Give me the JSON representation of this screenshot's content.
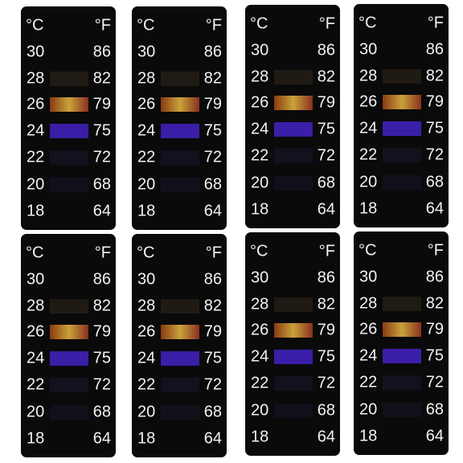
{
  "strips": [
    {
      "units": [
        "°C",
        "°F"
      ],
      "rows": [
        [
          30,
          86
        ],
        [
          28,
          82
        ],
        [
          26,
          79
        ],
        [
          24,
          75
        ],
        [
          22,
          72
        ],
        [
          20,
          68
        ],
        [
          18,
          64
        ]
      ]
    },
    {
      "units": [
        "°C",
        "°F"
      ],
      "rows": [
        [
          30,
          86
        ],
        [
          28,
          82
        ],
        [
          26,
          79
        ],
        [
          24,
          75
        ],
        [
          22,
          72
        ],
        [
          20,
          68
        ],
        [
          18,
          64
        ]
      ]
    },
    {
      "units": [
        "°C",
        "°F"
      ],
      "rows": [
        [
          30,
          86
        ],
        [
          28,
          82
        ],
        [
          26,
          79
        ],
        [
          24,
          75
        ],
        [
          22,
          72
        ],
        [
          20,
          68
        ],
        [
          18,
          64
        ]
      ]
    },
    {
      "units": [
        "°C",
        "°F"
      ],
      "rows": [
        [
          30,
          86
        ],
        [
          28,
          82
        ],
        [
          26,
          79
        ],
        [
          24,
          75
        ],
        [
          22,
          72
        ],
        [
          20,
          68
        ],
        [
          18,
          64
        ]
      ]
    },
    {
      "units": [
        "°C",
        "°F"
      ],
      "rows": [
        [
          30,
          86
        ],
        [
          28,
          82
        ],
        [
          26,
          79
        ],
        [
          24,
          75
        ],
        [
          22,
          72
        ],
        [
          20,
          68
        ],
        [
          18,
          64
        ]
      ]
    },
    {
      "units": [
        "°C",
        "°F"
      ],
      "rows": [
        [
          30,
          86
        ],
        [
          28,
          82
        ],
        [
          26,
          79
        ],
        [
          24,
          75
        ],
        [
          22,
          72
        ],
        [
          20,
          68
        ],
        [
          18,
          64
        ]
      ]
    },
    {
      "units": [
        "°C",
        "°F"
      ],
      "rows": [
        [
          30,
          86
        ],
        [
          28,
          82
        ],
        [
          26,
          79
        ],
        [
          24,
          75
        ],
        [
          22,
          72
        ],
        [
          20,
          68
        ],
        [
          18,
          64
        ]
      ]
    },
    {
      "units": [
        "°C",
        "°F"
      ],
      "rows": [
        [
          30,
          86
        ],
        [
          28,
          82
        ],
        [
          26,
          79
        ],
        [
          24,
          75
        ],
        [
          22,
          72
        ],
        [
          20,
          68
        ],
        [
          18,
          64
        ]
      ]
    }
  ]
}
